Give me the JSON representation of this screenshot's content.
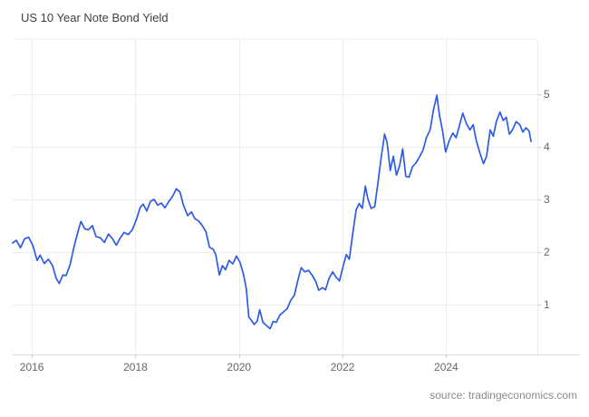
{
  "header": {
    "title": "US 10 Year Note Bond Yield"
  },
  "footer": {
    "source": "source: tradingeconomics.com"
  },
  "colors": {
    "background": "#FFFFFF",
    "line": "#2E5BE6",
    "grid": "#ECECEC",
    "axis_line": "#D9D9D9",
    "tick_mark": "#CCCCCC",
    "title_text": "#404040",
    "tick_text": "#666666",
    "source_text": "#8A8A8A"
  },
  "chart_data": {
    "type": "line",
    "title": "US 10 Year Note Bond Yield",
    "xlabel": "",
    "ylabel": "",
    "x_range": [
      2015.63,
      2025.76
    ],
    "y_range": [
      0.05,
      6.05
    ],
    "x_ticks": [
      2016,
      2018,
      2020,
      2022,
      2024
    ],
    "y_ticks": [
      1,
      2,
      3,
      4,
      5
    ],
    "grid": true,
    "legend": "none",
    "y_axis_side": "right",
    "series": [
      {
        "name": "US 10 Year Note Bond Yield",
        "x": [
          2015.63,
          2015.7,
          2015.78,
          2015.86,
          2015.94,
          2016.02,
          2016.1,
          2016.16,
          2016.24,
          2016.32,
          2016.4,
          2016.47,
          2016.53,
          2016.6,
          2016.66,
          2016.74,
          2016.82,
          2016.9,
          2016.95,
          2017.02,
          2017.09,
          2017.17,
          2017.24,
          2017.32,
          2017.4,
          2017.48,
          2017.55,
          2017.63,
          2017.71,
          2017.78,
          2017.86,
          2017.94,
          2018.02,
          2018.09,
          2018.15,
          2018.22,
          2018.29,
          2018.36,
          2018.43,
          2018.5,
          2018.57,
          2018.64,
          2018.72,
          2018.79,
          2018.86,
          2018.93,
          2019.01,
          2019.08,
          2019.15,
          2019.22,
          2019.29,
          2019.36,
          2019.43,
          2019.5,
          2019.55,
          2019.62,
          2019.68,
          2019.74,
          2019.81,
          2019.88,
          2019.95,
          2020.02,
          2020.09,
          2020.14,
          2020.19,
          2020.24,
          2020.29,
          2020.35,
          2020.4,
          2020.46,
          2020.53,
          2020.6,
          2020.66,
          2020.72,
          2020.79,
          2020.86,
          2020.93,
          2021.0,
          2021.07,
          2021.13,
          2021.2,
          2021.27,
          2021.34,
          2021.41,
          2021.48,
          2021.54,
          2021.61,
          2021.67,
          2021.74,
          2021.81,
          2021.87,
          2021.94,
          2022.01,
          2022.07,
          2022.13,
          2022.19,
          2022.26,
          2022.32,
          2022.38,
          2022.44,
          2022.49,
          2022.55,
          2022.62,
          2022.68,
          2022.74,
          2022.81,
          2022.86,
          2022.92,
          2022.98,
          2023.04,
          2023.1,
          2023.16,
          2023.22,
          2023.28,
          2023.35,
          2023.42,
          2023.48,
          2023.55,
          2023.62,
          2023.69,
          2023.75,
          2023.82,
          2023.87,
          2023.93,
          2023.99,
          2024.06,
          2024.13,
          2024.19,
          2024.26,
          2024.32,
          2024.39,
          2024.46,
          2024.52,
          2024.58,
          2024.65,
          2024.72,
          2024.78,
          2024.85,
          2024.91,
          2024.97,
          2025.04,
          2025.1,
          2025.16,
          2025.22,
          2025.28,
          2025.35,
          2025.42,
          2025.48,
          2025.54,
          2025.6,
          2025.64
        ],
        "y": [
          2.17,
          2.22,
          2.08,
          2.25,
          2.28,
          2.12,
          1.84,
          1.94,
          1.78,
          1.86,
          1.74,
          1.5,
          1.4,
          1.56,
          1.55,
          1.76,
          2.12,
          2.42,
          2.58,
          2.44,
          2.42,
          2.5,
          2.29,
          2.27,
          2.18,
          2.34,
          2.26,
          2.13,
          2.27,
          2.37,
          2.33,
          2.42,
          2.62,
          2.84,
          2.91,
          2.78,
          2.96,
          3.0,
          2.89,
          2.93,
          2.84,
          2.95,
          3.06,
          3.2,
          3.14,
          2.88,
          2.69,
          2.76,
          2.63,
          2.59,
          2.5,
          2.39,
          2.09,
          2.05,
          1.95,
          1.56,
          1.74,
          1.66,
          1.84,
          1.77,
          1.92,
          1.8,
          1.56,
          1.3,
          0.76,
          0.7,
          0.62,
          0.68,
          0.9,
          0.66,
          0.6,
          0.54,
          0.68,
          0.66,
          0.8,
          0.86,
          0.92,
          1.08,
          1.18,
          1.44,
          1.7,
          1.62,
          1.65,
          1.56,
          1.44,
          1.27,
          1.32,
          1.28,
          1.5,
          1.62,
          1.52,
          1.45,
          1.73,
          1.95,
          1.86,
          2.3,
          2.8,
          2.92,
          2.83,
          3.25,
          3.0,
          2.83,
          2.86,
          3.3,
          3.76,
          4.24,
          4.08,
          3.55,
          3.82,
          3.46,
          3.64,
          3.96,
          3.44,
          3.42,
          3.62,
          3.7,
          3.8,
          3.93,
          4.18,
          4.32,
          4.68,
          4.98,
          4.6,
          4.3,
          3.9,
          4.12,
          4.26,
          4.17,
          4.42,
          4.64,
          4.44,
          4.32,
          4.42,
          4.12,
          3.88,
          3.68,
          3.82,
          4.32,
          4.2,
          4.48,
          4.66,
          4.5,
          4.56,
          4.24,
          4.32,
          4.48,
          4.42,
          4.28,
          4.36,
          4.3,
          4.1
        ]
      }
    ]
  }
}
